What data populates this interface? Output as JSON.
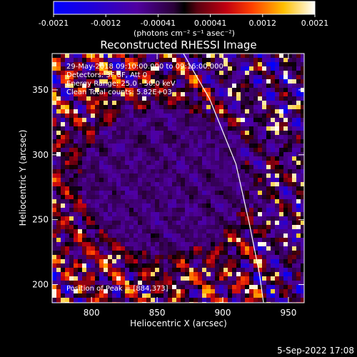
{
  "chart_data": {
    "type": "heatmap",
    "title": "Reconstructed RHESSI Image",
    "xlabel": "Heliocentric X (arcsec)",
    "ylabel": "Heliocentric Y (arcsec)",
    "xlim": [
      770,
      962
    ],
    "ylim": [
      186,
      378
    ],
    "xticks": [
      "800",
      "850",
      "900",
      "950"
    ],
    "yticks": [
      "200",
      "250",
      "300",
      "350"
    ],
    "colorbar": {
      "ticks": [
        "-0.0021",
        "-0.0012",
        "-0.00041",
        "0.00041",
        "0.0012",
        "0.0021"
      ],
      "range": [
        -0.0021,
        0.0021
      ],
      "units": "(photons cm⁻² s⁻¹ asec⁻²)"
    },
    "annotations": [
      "29-May-2018 09:10:00.000 to 09:16:00.000",
      "Detectors: 3F 8F, Att 0",
      "Energy Range: 25.0 - 50.0 keV",
      "Clean    Total counts: 5.82E+03"
    ],
    "peak_label": "Position of Peak = [884,373]",
    "limb_points": [
      [
        870,
        378
      ],
      [
        890,
        343
      ],
      [
        910,
        293
      ],
      [
        920,
        248
      ],
      [
        928,
        208
      ],
      [
        931,
        186
      ]
    ]
  },
  "date_stamp": "5-Sep-2022 17:08",
  "colors": {
    "background": "#000000",
    "text": "#ffffff",
    "limb": "#ffffff"
  }
}
